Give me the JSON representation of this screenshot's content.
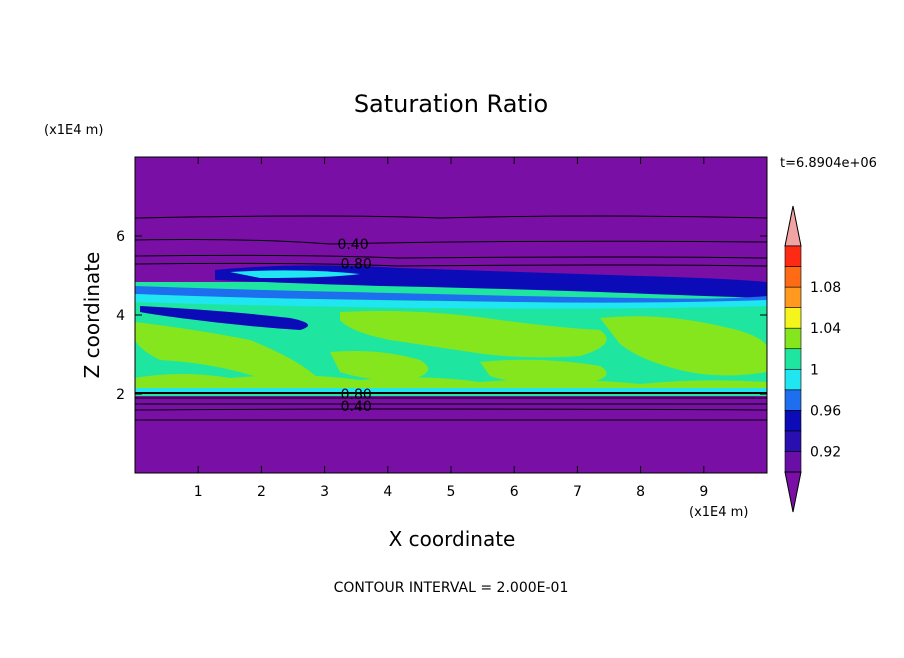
{
  "chart_data": {
    "type": "heatmap",
    "title": "Saturation Ratio",
    "xlabel": "X coordinate",
    "ylabel": "Z coordinate",
    "x_unit": "(x1E4 m)",
    "y_unit": "(x1E4 m)",
    "time_label": "t=6.8904e+06",
    "footer": "CONTOUR INTERVAL = 2.000E-01",
    "xlim": [
      0,
      10
    ],
    "ylim": [
      0,
      8
    ],
    "x_ticks": [
      "1",
      "2",
      "3",
      "4",
      "5",
      "6",
      "7",
      "8",
      "9"
    ],
    "y_ticks": [
      "2",
      "4",
      "6"
    ],
    "contour_labels": [
      {
        "text": "0.40",
        "x": 3.45,
        "z": 5.8
      },
      {
        "text": "0.80",
        "x": 3.5,
        "z": 5.3
      },
      {
        "text": "0.80",
        "x": 3.5,
        "z": 2.0
      },
      {
        "text": "0.40",
        "x": 3.5,
        "z": 1.7
      }
    ],
    "colorbar": {
      "tick_labels": [
        "1.08",
        "1.04",
        "1",
        "0.96",
        "0.92"
      ],
      "levels": [
        {
          "upper": 0.92,
          "color": "#6a0fa6"
        },
        {
          "upper": 0.94,
          "color": "#2a0fb0"
        },
        {
          "upper": 0.96,
          "color": "#0b0bb8"
        },
        {
          "upper": 0.98,
          "color": "#1e6ef0"
        },
        {
          "upper": 1.0,
          "color": "#20e6f2"
        },
        {
          "upper": 1.02,
          "color": "#1ee6a0"
        },
        {
          "upper": 1.04,
          "color": "#86e61e"
        },
        {
          "upper": 1.06,
          "color": "#f5f51e"
        },
        {
          "upper": 1.08,
          "color": "#ff9a1e"
        },
        {
          "upper": 1.1,
          "color": "#ff6a14"
        },
        {
          "upper": 1.12,
          "color": "#ff2a14"
        }
      ],
      "under_color": "#7a0fa6",
      "over_color": "#f2a3a3"
    }
  }
}
